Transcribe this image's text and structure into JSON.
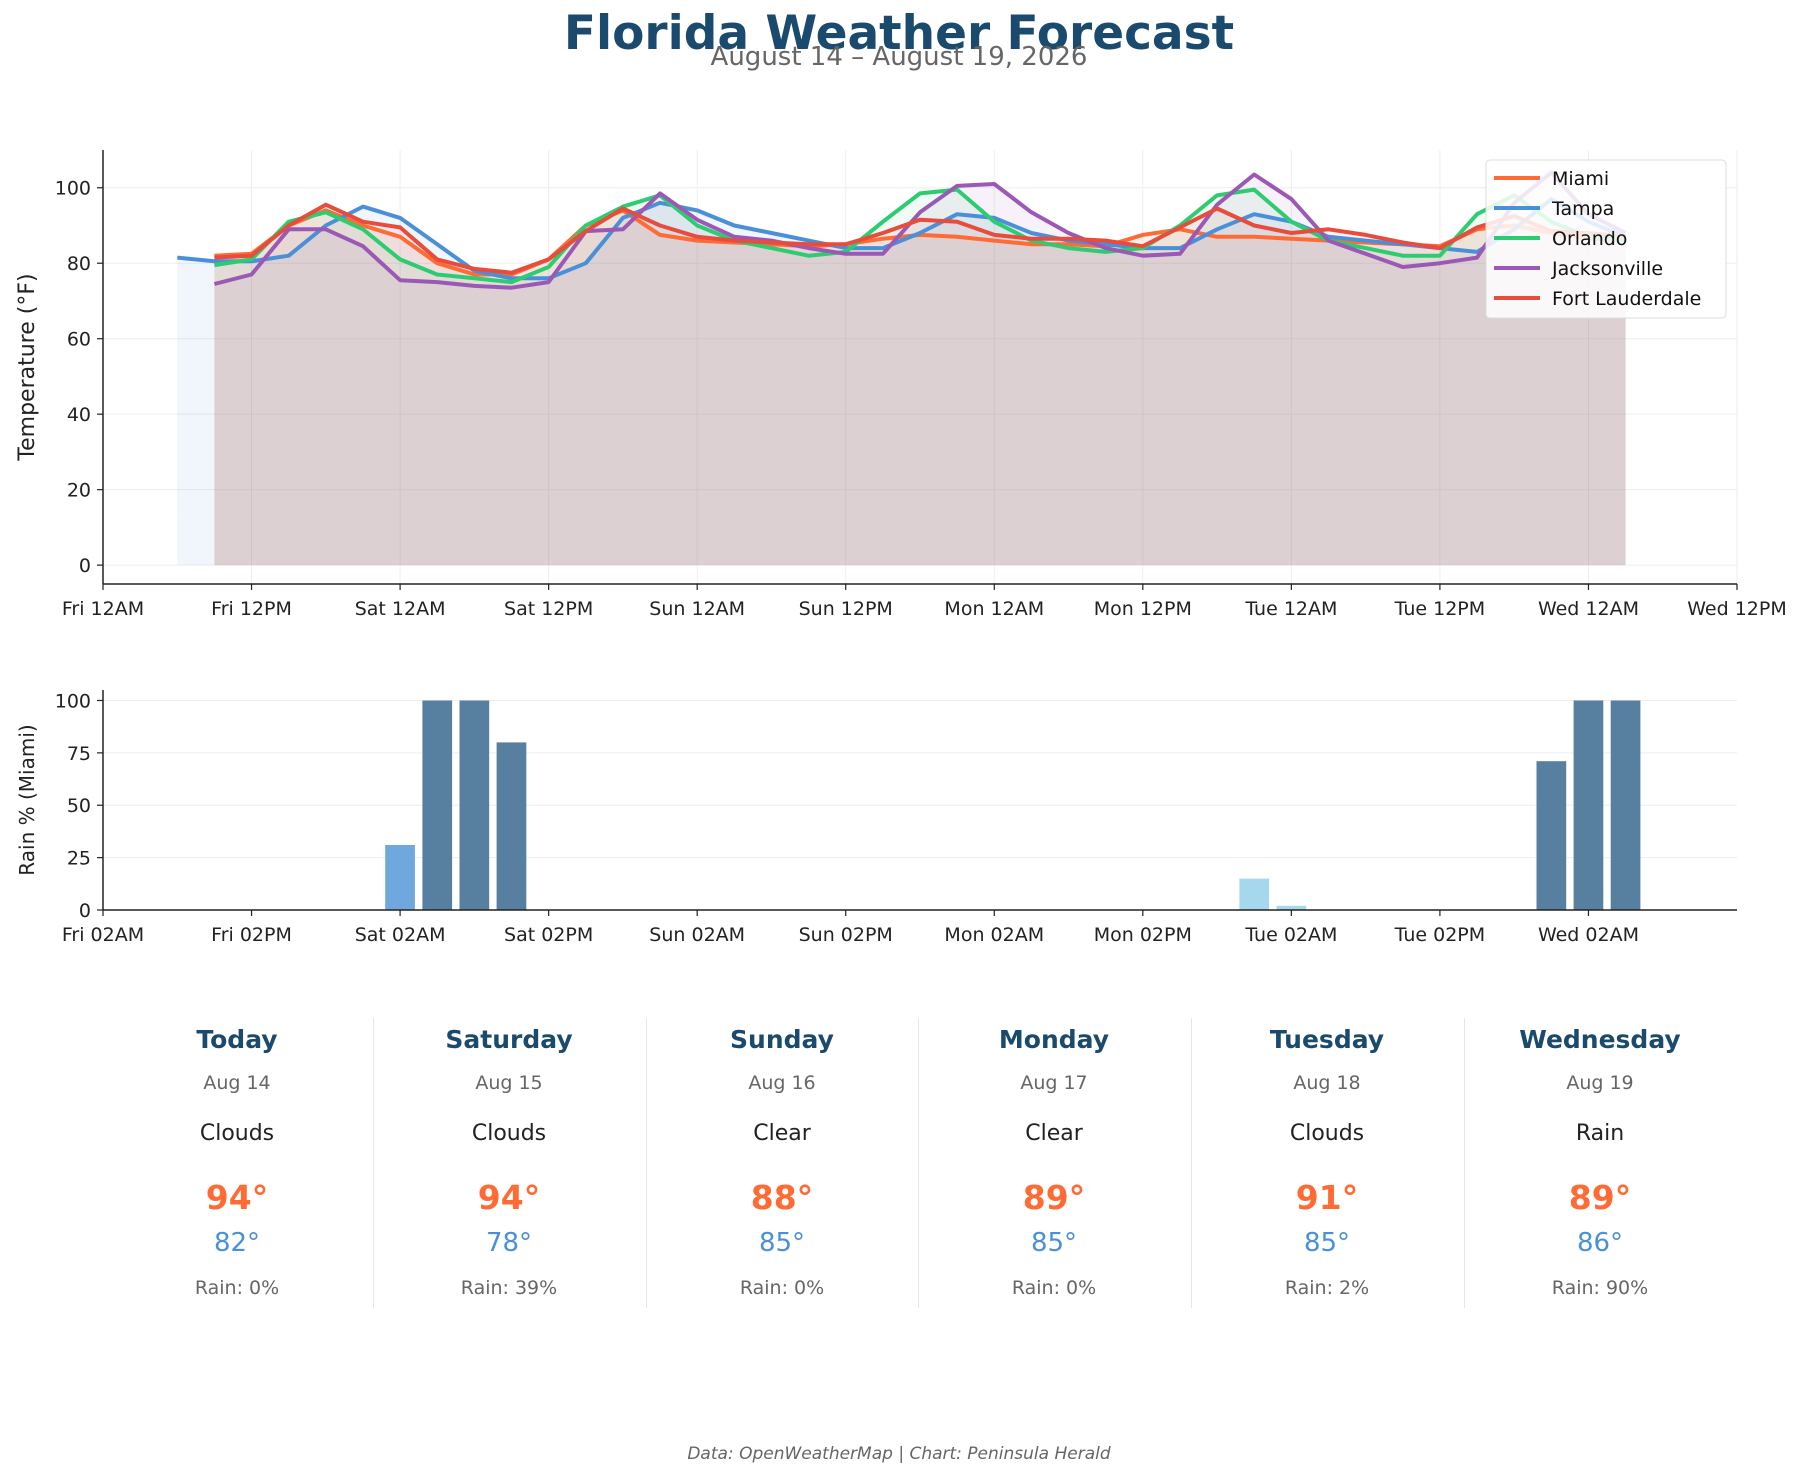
{
  "header": {
    "title": "Florida Weather Forecast",
    "subtitle": "August 14 – August 19, 2026"
  },
  "footer": "Data: OpenWeatherMap | Chart: Peninsula Herald",
  "chart_data": [
    {
      "type": "line",
      "ylabel": "Temperature (°F)",
      "xlabel": "",
      "ylim": [
        -5,
        110
      ],
      "yticks": [
        0,
        20,
        40,
        60,
        80,
        100
      ],
      "xtick_labels": [
        "Fri 12AM",
        "Fri 12PM",
        "Sat 12AM",
        "Sat 12PM",
        "Sun 12AM",
        "Sun 12PM",
        "Mon 12AM",
        "Mon 12PM",
        "Tue 12AM",
        "Tue 12PM",
        "Wed 12AM",
        "Wed 12PM"
      ],
      "xtick_hours": [
        0,
        12,
        24,
        36,
        48,
        60,
        72,
        84,
        96,
        108,
        120,
        132
      ],
      "xlim_hours": [
        0,
        132
      ],
      "grid": true,
      "area_fill": true,
      "legend_position": "top-right",
      "series": [
        {
          "name": "Miami",
          "color": "#ff6b35",
          "start_hour": 9,
          "values": [
            82,
            82.5,
            90,
            94,
            90,
            87,
            80,
            77,
            77,
            81,
            90,
            94,
            87.5,
            86,
            85.5,
            85,
            84.5,
            85,
            86.5,
            87.5,
            87,
            86,
            85,
            85,
            84.5,
            87.5,
            89,
            87,
            87,
            86.5,
            86,
            85.5,
            85,
            84.5,
            89,
            90,
            88,
            86.5,
            86
          ]
        },
        {
          "name": "Tampa",
          "color": "#4a90d9",
          "start_hour": 6,
          "values": [
            81.5,
            80.5,
            80.5,
            82,
            90,
            95,
            92,
            85,
            78,
            76,
            76,
            80,
            92,
            96,
            94,
            90,
            88,
            86,
            84,
            84,
            88,
            93,
            92,
            88,
            86,
            85,
            84,
            84,
            89,
            93,
            91,
            87,
            86,
            85,
            84,
            83,
            89,
            97,
            91,
            87
          ]
        },
        {
          "name": "Orlando",
          "color": "#2ecc71",
          "start_hour": 9,
          "values": [
            79.5,
            81,
            91,
            93.5,
            89,
            81,
            77,
            76,
            75,
            79,
            90,
            95,
            98,
            90,
            86,
            84,
            82,
            83,
            91,
            98.5,
            99.5,
            91,
            86,
            84,
            83,
            84,
            90,
            98,
            99.5,
            91,
            86,
            84,
            82,
            82,
            93,
            98,
            91,
            87,
            86
          ]
        },
        {
          "name": "Jacksonville",
          "color": "#9b59b6",
          "start_hour": 9,
          "values": [
            74.5,
            77,
            89,
            89,
            84.5,
            75.5,
            75,
            74,
            73.5,
            75,
            88.5,
            89,
            98.5,
            91.5,
            87,
            86,
            84,
            82.5,
            82.5,
            93.5,
            100.5,
            101,
            93.5,
            88,
            84,
            82,
            82.5,
            95.5,
            103.5,
            97,
            86,
            82.5,
            79,
            80,
            81.5,
            96,
            104,
            93,
            88
          ]
        },
        {
          "name": "Fort Lauderdale",
          "color": "#e74c3c",
          "start_hour": 9,
          "values": [
            81.5,
            82,
            90,
            95.5,
            91,
            89.5,
            81,
            78.5,
            77.5,
            81,
            88.5,
            94.5,
            90,
            87,
            86,
            85.5,
            85,
            85,
            88,
            91.5,
            91,
            87.5,
            86.5,
            86.5,
            86,
            84.5,
            89.5,
            94.5,
            90,
            88,
            89,
            87.5,
            85.5,
            84,
            89.5,
            92.5,
            88.5,
            88,
            87
          ]
        }
      ]
    },
    {
      "type": "bar",
      "ylabel": "Rain % (Miami)",
      "xlabel": "",
      "ylim": [
        0,
        105
      ],
      "yticks": [
        0,
        25,
        50,
        75,
        100
      ],
      "xtick_labels": [
        "Fri 02AM",
        "Fri 02PM",
        "Sat 02AM",
        "Sat 02PM",
        "Sun 02AM",
        "Sun 02PM",
        "Mon 02AM",
        "Mon 02PM",
        "Tue 02AM",
        "Tue 02PM",
        "Wed 02AM"
      ],
      "xtick_hours": [
        0,
        12,
        24,
        36,
        48,
        60,
        72,
        84,
        96,
        108,
        120
      ],
      "xlim_hours": [
        0,
        132
      ],
      "grid": true,
      "bars": [
        {
          "x_label": "Sat 02AM",
          "hour": 24,
          "value": 31,
          "color": "#6fa8dc"
        },
        {
          "x_label": "Sat 05AM",
          "hour": 27,
          "value": 100,
          "color": "#577fa0"
        },
        {
          "x_label": "Sat 08AM",
          "hour": 30,
          "value": 100,
          "color": "#577fa0"
        },
        {
          "x_label": "Sat 11AM",
          "hour": 33,
          "value": 80,
          "color": "#577fa0"
        },
        {
          "x_label": "Tue 02AM",
          "hour": 93,
          "value": 15,
          "color": "#a5d8ed"
        },
        {
          "x_label": "Tue 05AM",
          "hour": 96,
          "value": 2,
          "color": "#a5d8ed"
        },
        {
          "x_label": "Tue 11PM",
          "hour": 117,
          "value": 71,
          "color": "#577fa0"
        },
        {
          "x_label": "Wed 02AM",
          "hour": 120,
          "value": 100,
          "color": "#577fa0"
        },
        {
          "x_label": "Wed 05AM",
          "hour": 123,
          "value": 100,
          "color": "#577fa0"
        }
      ]
    }
  ],
  "forecast": [
    {
      "day": "Today",
      "date": "Aug 14",
      "condition": "Clouds",
      "high": "94°",
      "low": "82°",
      "rain": "Rain: 0%"
    },
    {
      "day": "Saturday",
      "date": "Aug 15",
      "condition": "Clouds",
      "high": "94°",
      "low": "78°",
      "rain": "Rain: 39%"
    },
    {
      "day": "Sunday",
      "date": "Aug 16",
      "condition": "Clear",
      "high": "88°",
      "low": "85°",
      "rain": "Rain: 0%"
    },
    {
      "day": "Monday",
      "date": "Aug 17",
      "condition": "Clear",
      "high": "89°",
      "low": "85°",
      "rain": "Rain: 0%"
    },
    {
      "day": "Tuesday",
      "date": "Aug 18",
      "condition": "Clouds",
      "high": "91°",
      "low": "85°",
      "rain": "Rain: 2%"
    },
    {
      "day": "Wednesday",
      "date": "Aug 19",
      "condition": "Rain",
      "high": "89°",
      "low": "86°",
      "rain": "Rain: 90%"
    }
  ]
}
